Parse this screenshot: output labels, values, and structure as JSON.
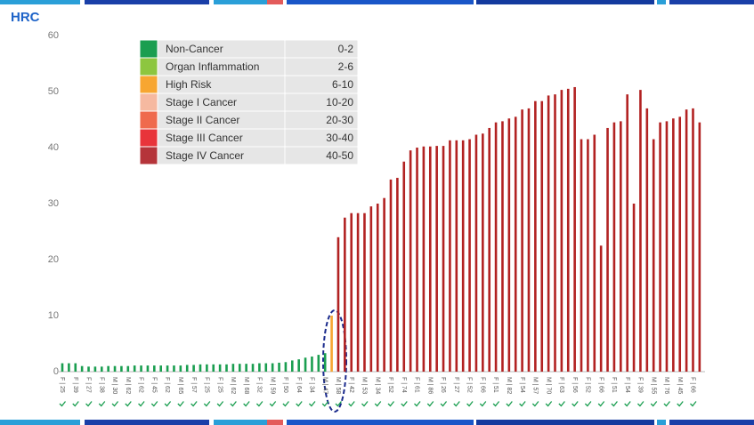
{
  "logo": "HRC",
  "chart_data": {
    "type": "bar",
    "categories": [
      "F | 25",
      null,
      "F | 39",
      null,
      "F | 27",
      null,
      "F | 38",
      null,
      "M | 30",
      null,
      "M | 62",
      null,
      "F | 62",
      null,
      "F | 45",
      null,
      "F | 62",
      null,
      "M | 65",
      null,
      "F | 57",
      null,
      "F | 25",
      null,
      "F | 25",
      null,
      "M | 62",
      null,
      "M | 68",
      null,
      "F | 32",
      null,
      "M | 59",
      null,
      "F | 50",
      null,
      "F | 64",
      null,
      "F | 34",
      null,
      "M | 47",
      null,
      "M | 58",
      null,
      "F | 42",
      null,
      "M | 53",
      null,
      "M | 34",
      null,
      "F | 52",
      null,
      "F | 74",
      null,
      "F | 61",
      null,
      "M | 86",
      null,
      "F | 26",
      null,
      "F | 27",
      null,
      "F | 52",
      null,
      "F | 66",
      null,
      "F | 51",
      null,
      "M | 82",
      null,
      "F | 54",
      null,
      "M | 57",
      null,
      "M | 70",
      null,
      "F | 63",
      null,
      "F | 56",
      null,
      "F | 52",
      null,
      "F | 66",
      null,
      "F | 51",
      null,
      "F | 54",
      null,
      "F | 39",
      null,
      "M | 55",
      null,
      "M | 76",
      null,
      "M | 45",
      null,
      "F | 66",
      null
    ],
    "values": [
      1.5,
      1.5,
      1.5,
      1.0,
      0.9,
      0.9,
      0.9,
      1.0,
      1.0,
      1.0,
      1.0,
      1.1,
      1.1,
      1.1,
      1.1,
      1.1,
      1.1,
      1.1,
      1.1,
      1.2,
      1.2,
      1.3,
      1.3,
      1.3,
      1.3,
      1.3,
      1.4,
      1.4,
      1.4,
      1.4,
      1.5,
      1.5,
      1.5,
      1.6,
      1.7,
      2.0,
      2.2,
      2.5,
      2.7,
      3.0,
      3.3,
      10,
      24,
      27.5,
      28.3,
      28.3,
      28.3,
      29.5,
      30,
      31,
      34.3,
      34.6,
      37.5,
      39.5,
      40,
      40.2,
      40.2,
      40.3,
      40.3,
      41.3,
      41.3,
      41.3,
      41.5,
      42.3,
      42.5,
      43.5,
      44.5,
      44.7,
      45.2,
      45.5,
      46.8,
      47,
      48.3,
      48.3,
      49.3,
      49.5,
      50.3,
      50.5,
      50.8,
      41.5,
      41.5,
      42.3,
      22.5,
      43.5,
      44.5,
      44.7,
      49.5,
      30,
      50.3,
      47,
      41.5,
      44.5,
      44.7,
      45.2,
      45.5,
      46.8,
      47,
      44.5
    ],
    "colors": [
      "#1a9e50",
      "#1a9e50",
      "#1a9e50",
      "#1a9e50",
      "#1a9e50",
      "#1a9e50",
      "#1a9e50",
      "#1a9e50",
      "#1a9e50",
      "#1a9e50",
      "#1a9e50",
      "#1a9e50",
      "#1a9e50",
      "#1a9e50",
      "#1a9e50",
      "#1a9e50",
      "#1a9e50",
      "#1a9e50",
      "#1a9e50",
      "#1a9e50",
      "#1a9e50",
      "#1a9e50",
      "#1a9e50",
      "#1a9e50",
      "#1a9e50",
      "#1a9e50",
      "#1a9e50",
      "#1a9e50",
      "#1a9e50",
      "#1a9e50",
      "#1a9e50",
      "#1a9e50",
      "#1a9e50",
      "#1a9e50",
      "#1a9e50",
      "#1a9e50",
      "#1a9e50",
      "#1a9e50",
      "#1a9e50",
      "#1a9e50",
      "#1a9e50",
      "#f7a631",
      "#b22222",
      "#b22222",
      "#b22222",
      "#b22222",
      "#b22222",
      "#b22222",
      "#b22222",
      "#b22222",
      "#b22222",
      "#b22222",
      "#b22222",
      "#b22222",
      "#b22222",
      "#b22222",
      "#b22222",
      "#b22222",
      "#b22222",
      "#b22222",
      "#b22222",
      "#b22222",
      "#b22222",
      "#b22222",
      "#b22222",
      "#b22222",
      "#b22222",
      "#b22222",
      "#b22222",
      "#b22222",
      "#b22222",
      "#b22222",
      "#b22222",
      "#b22222",
      "#b22222",
      "#b22222",
      "#b22222",
      "#b22222",
      "#b22222",
      "#b22222",
      "#b22222",
      "#b22222",
      "#b22222",
      "#b22222",
      "#b22222",
      "#b22222",
      "#b22222",
      "#b22222",
      "#b22222",
      "#b22222",
      "#b22222",
      "#b22222",
      "#b22222",
      "#b22222",
      "#b22222",
      "#b22222",
      "#b22222",
      "#b22222"
    ],
    "ylim": [
      0,
      60
    ],
    "yticks": [
      0,
      10,
      20,
      30,
      40,
      50,
      60
    ],
    "legend": [
      {
        "name": "Non-Cancer",
        "range": "0-2",
        "color": "#1a9e50"
      },
      {
        "name": "Organ Inflammation",
        "range": "2-6",
        "color": "#8dc63f"
      },
      {
        "name": "High Risk",
        "range": "6-10",
        "color": "#f7a631"
      },
      {
        "name": "Stage I Cancer",
        "range": "10-20",
        "color": "#f6b9a0"
      },
      {
        "name": "Stage II Cancer",
        "range": "20-30",
        "color": "#ef6a4d"
      },
      {
        "name": "Stage III Cancer",
        "range": "30-40",
        "color": "#e8343a"
      },
      {
        "name": "Stage IV Cancer",
        "range": "40-50",
        "color": "#b5343a"
      }
    ]
  }
}
